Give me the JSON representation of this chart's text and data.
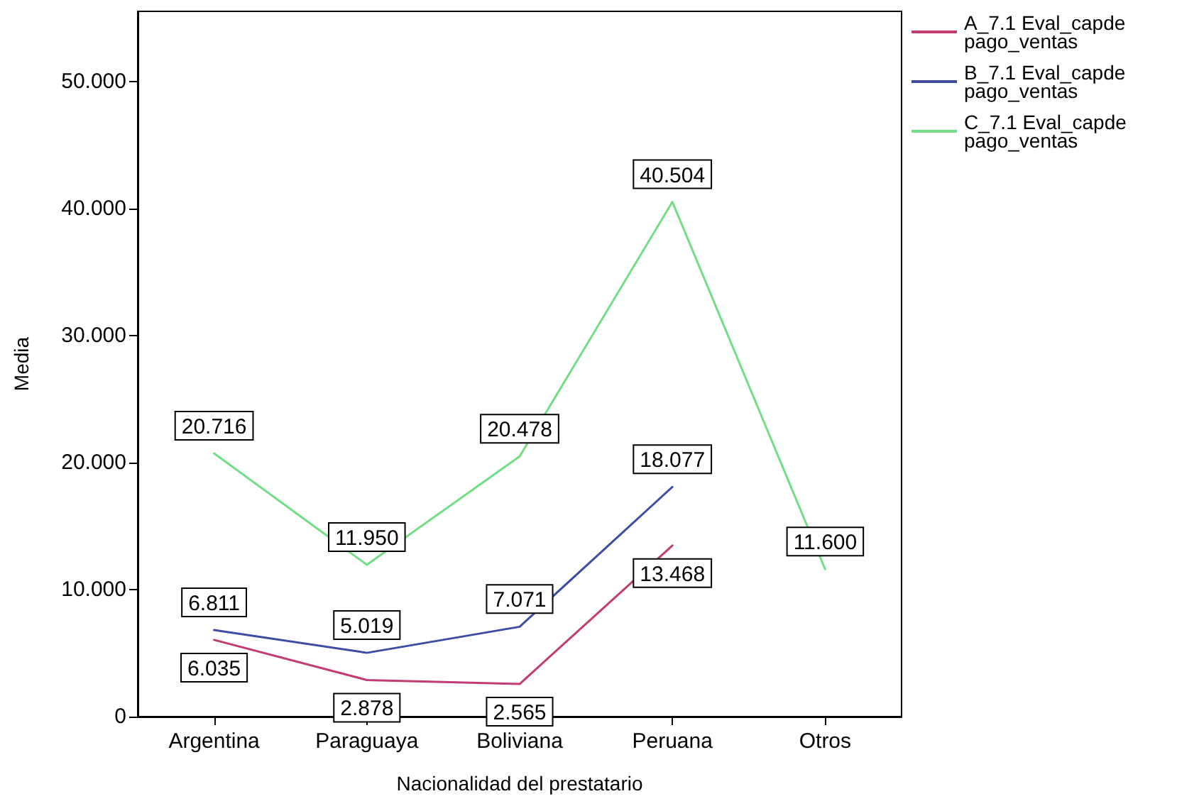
{
  "chart_data": {
    "type": "line",
    "xlabel": "Nacionalidad del prestatario",
    "ylabel": "Media",
    "categories": [
      "Argentina",
      "Paraguaya",
      "Boliviana",
      "Peruana",
      "Otros"
    ],
    "series": [
      {
        "name": "A_7.1 Eval_capdepago_ventas",
        "color": "#c23b72",
        "values": [
          6.035,
          2.878,
          2.565,
          13.468,
          null
        ],
        "value_labels": [
          "6.035",
          "2.878",
          "2.565",
          "13.468",
          null
        ]
      },
      {
        "name": "B_7.1 Eval_capdepago_ventas",
        "color": "#3b4ea3",
        "values": [
          6.811,
          5.019,
          7.071,
          18.077,
          null
        ],
        "value_labels": [
          "6.811",
          "5.019",
          "7.071",
          "18.077",
          null
        ]
      },
      {
        "name": "C_7.1 Eval_capdepago_ventas",
        "color": "#72de84",
        "values": [
          20.716,
          11.95,
          20.478,
          40.504,
          11.6
        ],
        "value_labels": [
          "20.716",
          "11.950",
          "20.478",
          "40.504",
          "11.600"
        ]
      }
    ],
    "ylim": [
      0,
      55.5
    ],
    "yticks": [
      0,
      {
        "value": 10,
        "label": "10.000"
      },
      {
        "value": 20,
        "label": "20.000"
      },
      {
        "value": 30,
        "label": "30.000"
      },
      {
        "value": 40,
        "label": "40.000"
      },
      {
        "value": 50,
        "label": "50.000"
      }
    ],
    "grid": false,
    "legend": "top right",
    "marker": "none",
    "line_style": "solid"
  }
}
